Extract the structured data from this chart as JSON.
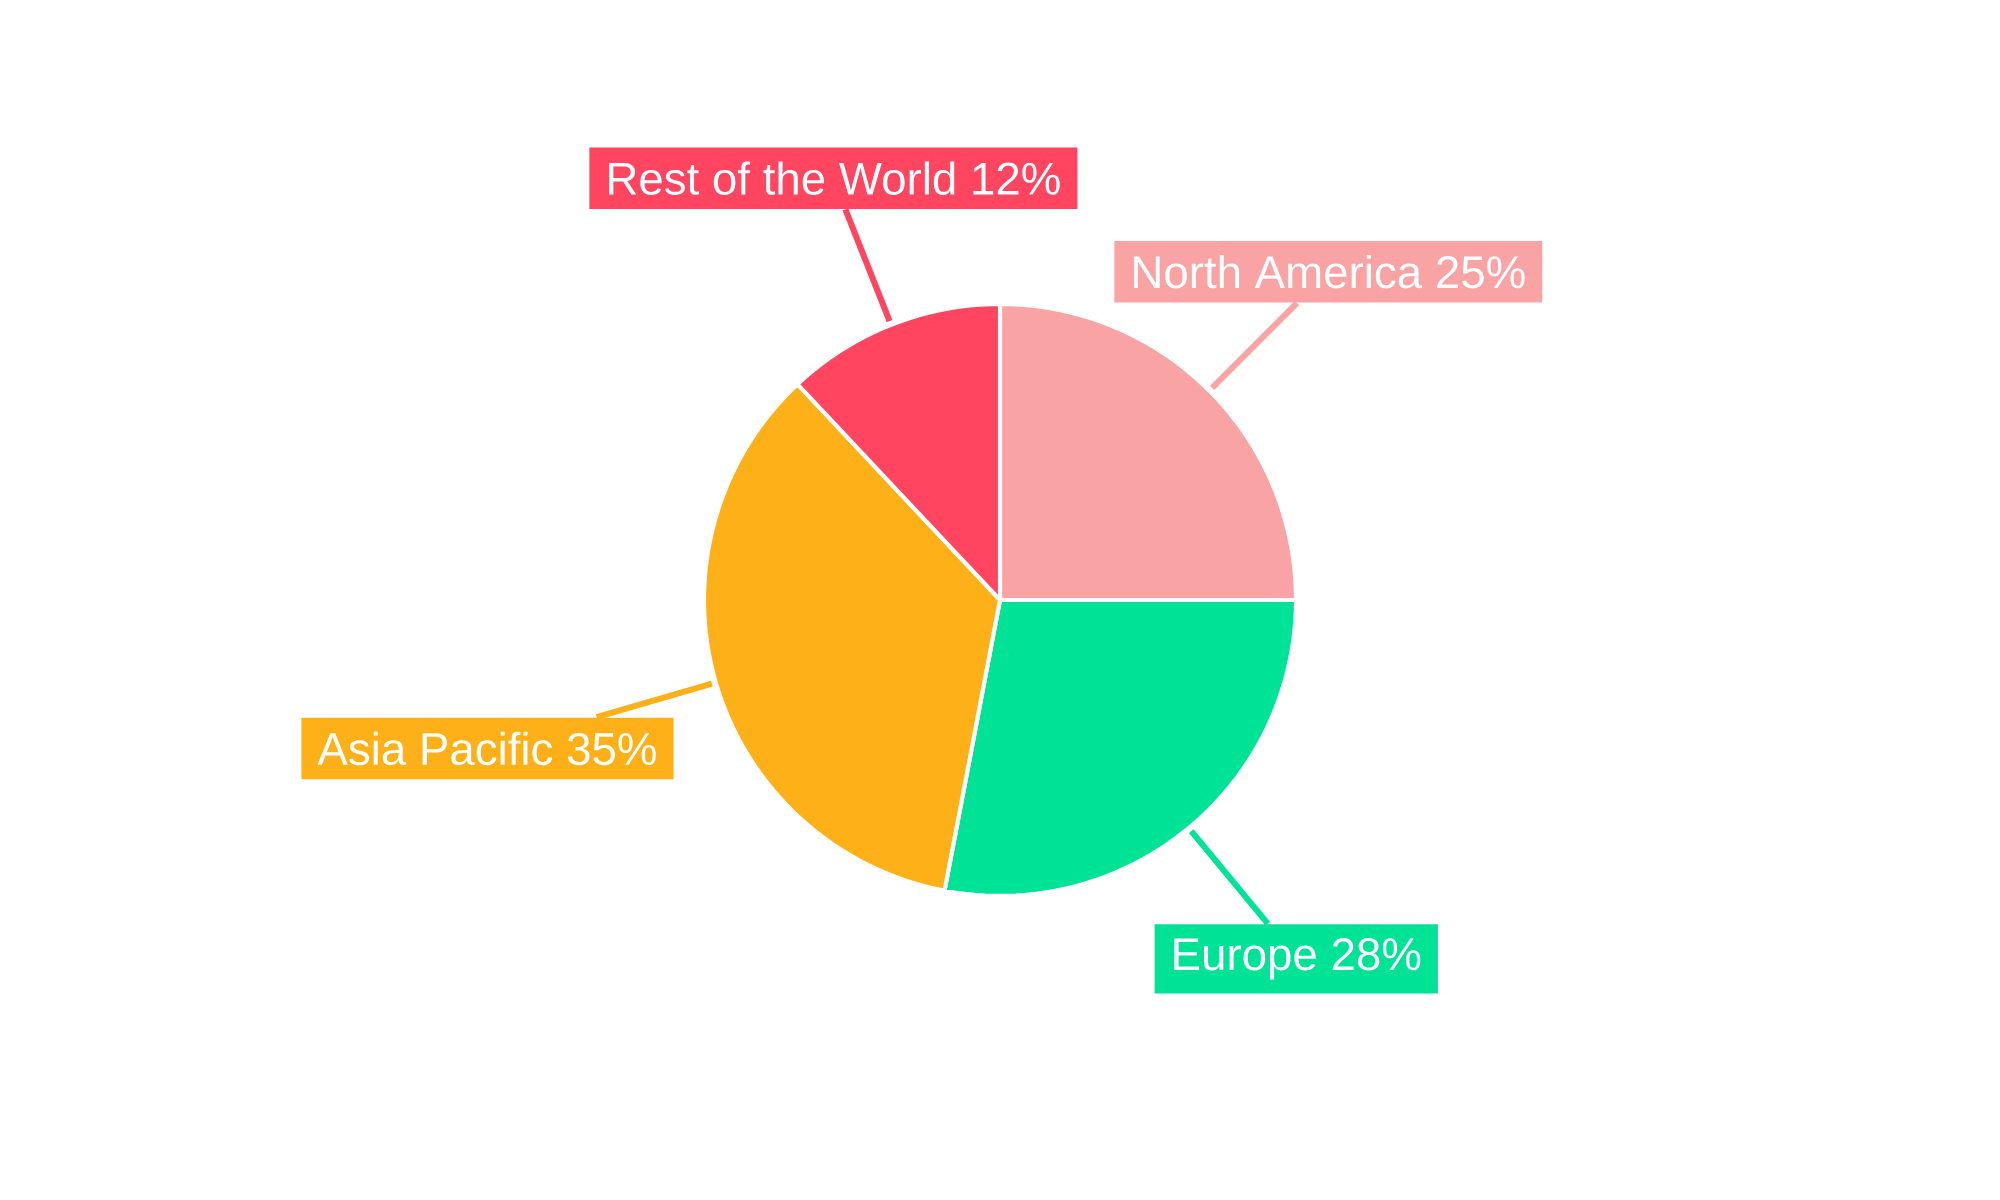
{
  "chart_data": {
    "type": "pie",
    "categories": [
      "North America",
      "Europe",
      "Asia Pacific",
      "Rest of the World"
    ],
    "values": [
      25,
      28,
      35,
      12
    ],
    "colors": [
      "#f9a3a4",
      "#00e396",
      "#feb019",
      "#ff4560"
    ],
    "value_labels": [
      "25%",
      "28%",
      "35%",
      "12%"
    ]
  }
}
